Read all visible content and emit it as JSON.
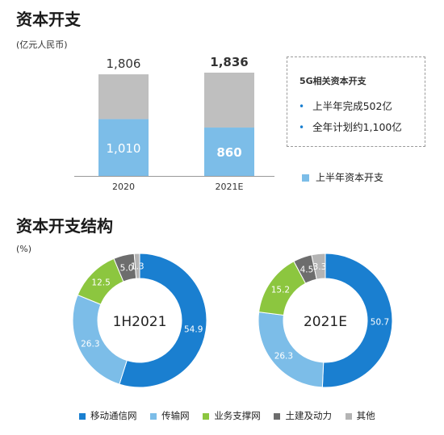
{
  "header": {
    "title_capex": "资本开支",
    "unit_capex": "(亿元人民币)",
    "title_structure": "资本开支结构",
    "unit_structure": "(%)"
  },
  "note": {
    "title": "5G相关资本开支",
    "items": [
      "上半年完成502亿",
      "全年计划约1,100亿"
    ]
  },
  "colors": {
    "total_bar": "#bfbfbf",
    "half_year_bar": "#7cbde8",
    "mobile": "#1a7fd0",
    "transmission": "#7cbde8",
    "business_support": "#8cc63f",
    "civil_power": "#6d6d6d",
    "other": "#b4b4b4"
  },
  "chart_data": [
    {
      "type": "bar",
      "title": "资本开支",
      "ylabel": "(亿元人民币)",
      "categories": [
        "2020",
        "2021E"
      ],
      "totals": [
        "1,806",
        "1,836"
      ],
      "total_values": [
        1806,
        1836
      ],
      "series": [
        {
          "name": "上半年资本开支",
          "values": [
            1010,
            860
          ],
          "labels": [
            "1,010",
            "860"
          ]
        }
      ]
    },
    {
      "type": "pie",
      "title": "1H2021",
      "unit": "(%)",
      "labels": [
        "移动通信网",
        "传输网",
        "业务支撑网",
        "土建及动力",
        "其他"
      ],
      "values": [
        54.9,
        26.3,
        12.5,
        5.0,
        1.3
      ],
      "value_labels": [
        "54.9",
        "26.3",
        "12.5",
        "5.0",
        "1.3"
      ]
    },
    {
      "type": "pie",
      "title": "2021E",
      "unit": "(%)",
      "labels": [
        "移动通信网",
        "传输网",
        "业务支撑网",
        "土建及动力",
        "其他"
      ],
      "values": [
        50.7,
        26.3,
        15.2,
        4.5,
        3.3
      ],
      "value_labels": [
        "50.7",
        "26.3",
        "15.2",
        "4.5",
        "3.3"
      ]
    }
  ]
}
